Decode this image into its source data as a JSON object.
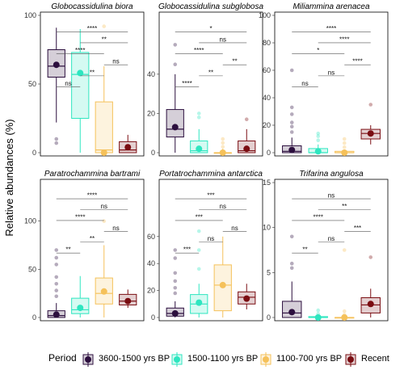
{
  "figure": {
    "ylabel": "Relative abundances (%)"
  },
  "legend": {
    "title": "Period",
    "items": [
      {
        "label": "3600-1500 yrs BP",
        "color": "#2c0f3e"
      },
      {
        "label": "1500-1100 yrs BP",
        "color": "#2ee6c0"
      },
      {
        "label": "1100-700 yrs BP",
        "color": "#f5c15a"
      },
      {
        "label": "Recent",
        "color": "#7a0d12"
      }
    ]
  },
  "chart_data": [
    {
      "type": "box",
      "title": "Globocassidulina biora",
      "ylim": [
        0,
        100
      ],
      "yticks": [
        0,
        50,
        100
      ],
      "boxes": [
        {
          "q1": 55,
          "median": 63,
          "q3": 75,
          "wlo": 22,
          "whi": 91,
          "mean": 64,
          "outliers": [
            7,
            10
          ]
        },
        {
          "q1": 25,
          "median": 57,
          "q3": 73,
          "wlo": 0,
          "whi": 90,
          "mean": 58,
          "outliers": []
        },
        {
          "q1": 0,
          "median": 2,
          "q3": 37,
          "wlo": 0,
          "whi": 63,
          "mean": 0,
          "outliers": [
            92
          ]
        },
        {
          "q1": 0,
          "median": 2,
          "q3": 8,
          "wlo": 0,
          "whi": 13,
          "mean": 4,
          "outliers": []
        }
      ],
      "comparisons": [
        {
          "from": 0,
          "to": 1,
          "label": "ns"
        },
        {
          "from": 0,
          "to": 2,
          "label": "****"
        },
        {
          "from": 0,
          "to": 3,
          "label": "****"
        },
        {
          "from": 1,
          "to": 2,
          "label": "**"
        },
        {
          "from": 1,
          "to": 3,
          "label": "**"
        },
        {
          "from": 2,
          "to": 3,
          "label": "ns"
        }
      ]
    },
    {
      "type": "box",
      "title": "Globocassidulina subglobosa",
      "ylim": [
        0,
        70
      ],
      "yticks": [
        0,
        20,
        40
      ],
      "boxes": [
        {
          "q1": 8,
          "median": 12,
          "q3": 22,
          "wlo": 0,
          "whi": 40,
          "mean": 13,
          "outliers": [
            45,
            55
          ]
        },
        {
          "q1": 0,
          "median": 1,
          "q3": 6,
          "wlo": 0,
          "whi": 12,
          "mean": 2,
          "outliers": [
            18,
            20
          ]
        },
        {
          "q1": 0,
          "median": 0,
          "q3": 0,
          "wlo": 0,
          "whi": 2,
          "mean": 0,
          "outliers": [
            3,
            5,
            7
          ]
        },
        {
          "q1": 0,
          "median": 1,
          "q3": 6,
          "wlo": 0,
          "whi": 12,
          "mean": 2,
          "outliers": [
            17
          ]
        }
      ],
      "comparisons": [
        {
          "from": 0,
          "to": 1,
          "label": "****"
        },
        {
          "from": 0,
          "to": 2,
          "label": "****"
        },
        {
          "from": 0,
          "to": 3,
          "label": "*"
        },
        {
          "from": 1,
          "to": 2,
          "label": "**"
        },
        {
          "from": 1,
          "to": 3,
          "label": "ns"
        },
        {
          "from": 2,
          "to": 3,
          "label": "**"
        }
      ]
    },
    {
      "type": "box",
      "title": "Miliammina arenacea",
      "ylim": [
        0,
        100
      ],
      "yticks": [
        0,
        20,
        40,
        60,
        80,
        100
      ],
      "boxes": [
        {
          "q1": 0,
          "median": 1,
          "q3": 5,
          "wlo": 0,
          "whi": 11,
          "mean": 2,
          "outliers": [
            15,
            19,
            22,
            28,
            33,
            60
          ]
        },
        {
          "q1": 0,
          "median": 0,
          "q3": 3,
          "wlo": 0,
          "whi": 6,
          "mean": 1,
          "outliers": [
            9,
            12,
            14
          ]
        },
        {
          "q1": 0,
          "median": 0,
          "q3": 1,
          "wlo": 0,
          "whi": 2,
          "mean": 0,
          "outliers": [
            4,
            7,
            10
          ]
        },
        {
          "q1": 10,
          "median": 14,
          "q3": 17,
          "wlo": 6,
          "whi": 20,
          "mean": 14,
          "outliers": [
            35
          ]
        }
      ],
      "comparisons": [
        {
          "from": 0,
          "to": 1,
          "label": "ns"
        },
        {
          "from": 0,
          "to": 2,
          "label": "*"
        },
        {
          "from": 0,
          "to": 3,
          "label": "****"
        },
        {
          "from": 1,
          "to": 2,
          "label": "ns"
        },
        {
          "from": 1,
          "to": 3,
          "label": "****"
        },
        {
          "from": 2,
          "to": 3,
          "label": "****"
        }
      ]
    },
    {
      "type": "box",
      "title": "Paratrochammina bartrami",
      "ylim": [
        0,
        140
      ],
      "yticks": [
        0,
        50,
        100
      ],
      "boxes": [
        {
          "q1": 0,
          "median": 2,
          "q3": 7,
          "wlo": 0,
          "whi": 15,
          "mean": 3,
          "outliers": [
            22,
            28,
            35,
            42,
            55,
            62,
            70
          ]
        },
        {
          "q1": 4,
          "median": 8,
          "q3": 20,
          "wlo": 0,
          "whi": 43,
          "mean": 10,
          "outliers": []
        },
        {
          "q1": 14,
          "median": 25,
          "q3": 41,
          "wlo": 0,
          "whi": 75,
          "mean": 27,
          "outliers": [
            100
          ]
        },
        {
          "q1": 13,
          "median": 17,
          "q3": 24,
          "wlo": 10,
          "whi": 29,
          "mean": 17,
          "outliers": []
        }
      ],
      "comparisons": [
        {
          "from": 0,
          "to": 1,
          "label": "**"
        },
        {
          "from": 0,
          "to": 2,
          "label": "****"
        },
        {
          "from": 0,
          "to": 3,
          "label": "****"
        },
        {
          "from": 1,
          "to": 2,
          "label": "**"
        },
        {
          "from": 1,
          "to": 3,
          "label": "ns"
        },
        {
          "from": 2,
          "to": 3,
          "label": "ns"
        }
      ]
    },
    {
      "type": "box",
      "title": "Portatrochammina antarctica",
      "ylim": [
        0,
        100
      ],
      "yticks": [
        0,
        20,
        40,
        60
      ],
      "boxes": [
        {
          "q1": 1,
          "median": 3,
          "q3": 7,
          "wlo": 0,
          "whi": 12,
          "mean": 3,
          "outliers": [
            18,
            22,
            27,
            33,
            44,
            50
          ]
        },
        {
          "q1": 3,
          "median": 10,
          "q3": 17,
          "wlo": 0,
          "whi": 25,
          "mean": 11,
          "outliers": [
            36,
            50,
            64
          ]
        },
        {
          "q1": 5,
          "median": 24,
          "q3": 39,
          "wlo": 0,
          "whi": 60,
          "mean": 24,
          "outliers": []
        },
        {
          "q1": 10,
          "median": 15,
          "q3": 19,
          "wlo": 6,
          "whi": 25,
          "mean": 14,
          "outliers": []
        }
      ],
      "comparisons": [
        {
          "from": 0,
          "to": 1,
          "label": "***"
        },
        {
          "from": 0,
          "to": 2,
          "label": "***"
        },
        {
          "from": 0,
          "to": 3,
          "label": "***"
        },
        {
          "from": 1,
          "to": 2,
          "label": "ns"
        },
        {
          "from": 1,
          "to": 3,
          "label": "ns"
        },
        {
          "from": 2,
          "to": 3,
          "label": "ns"
        }
      ]
    },
    {
      "type": "box",
      "title": "Trifarina angulosa",
      "ylim": [
        0,
        15
      ],
      "yticks": [
        0,
        5,
        10,
        15
      ],
      "boxes": [
        {
          "q1": 0,
          "median": 0.5,
          "q3": 1.8,
          "wlo": 0,
          "whi": 4,
          "mean": 0.6,
          "outliers": [
            5.5,
            6,
            9
          ]
        },
        {
          "q1": 0,
          "median": 0,
          "q3": 0.1,
          "wlo": 0,
          "whi": 0.2,
          "mean": 0,
          "outliers": [
            0.4,
            0.8
          ]
        },
        {
          "q1": 0,
          "median": 0,
          "q3": 0,
          "wlo": 0,
          "whi": 0,
          "mean": 0,
          "outliers": [
            0.3,
            0.7,
            7.5
          ]
        },
        {
          "q1": 0.5,
          "median": 1.4,
          "q3": 2.2,
          "wlo": 0,
          "whi": 3.2,
          "mean": 1.5,
          "outliers": [
            6.7
          ]
        }
      ],
      "comparisons": [
        {
          "from": 0,
          "to": 1,
          "label": "**"
        },
        {
          "from": 0,
          "to": 2,
          "label": "****"
        },
        {
          "from": 0,
          "to": 3,
          "label": "ns"
        },
        {
          "from": 1,
          "to": 2,
          "label": "ns"
        },
        {
          "from": 1,
          "to": 3,
          "label": "**"
        },
        {
          "from": 2,
          "to": 3,
          "label": "***"
        }
      ]
    }
  ]
}
